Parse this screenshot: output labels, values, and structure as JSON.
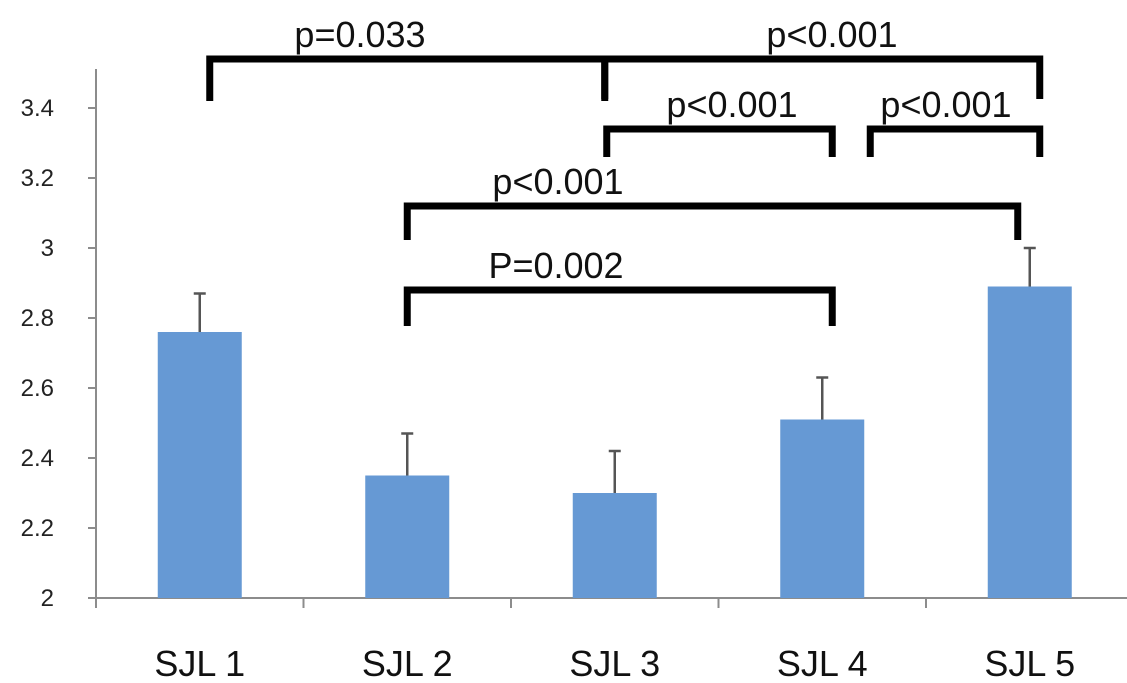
{
  "chart_data": {
    "type": "bar",
    "title": "",
    "xlabel": "",
    "ylabel": "",
    "categories": [
      "SJL 1",
      "SJL 2",
      "SJL 3",
      "SJL 4",
      "SJL 5"
    ],
    "values": [
      2.76,
      2.35,
      2.3,
      2.51,
      2.89
    ],
    "error_upper": [
      2.87,
      2.47,
      2.42,
      2.63,
      3.0
    ],
    "ylim": [
      2,
      3.5
    ],
    "yticks": [
      "2",
      "2.2",
      "2.4",
      "2.6",
      "2.8",
      "3",
      "3.2",
      "3.4"
    ],
    "ytick_values": [
      2,
      2.2,
      2.4,
      2.6,
      2.8,
      3,
      3.2,
      3.4
    ],
    "grid": false,
    "legend": "none",
    "bar_color": "#6699d4",
    "annotations": [
      {
        "label": "p=0.033",
        "from": "SJL 1",
        "to": "SJL 3",
        "level": 3.54
      },
      {
        "label": "p<0.001",
        "from": "SJL 3",
        "to": "SJL 5",
        "level": 3.54
      },
      {
        "label": "p<0.001",
        "from": "SJL 3",
        "to": "SJL 4",
        "level": 3.34
      },
      {
        "label": "p<0.001",
        "from": "SJL 4",
        "to": "SJL 5",
        "level": 3.34
      },
      {
        "label": "p<0.001",
        "from": "SJL 2",
        "to": "SJL 5",
        "level": 3.12
      },
      {
        "label": "P=0.002",
        "from": "SJL 2",
        "to": "SJL 4",
        "level": 2.88
      }
    ]
  }
}
